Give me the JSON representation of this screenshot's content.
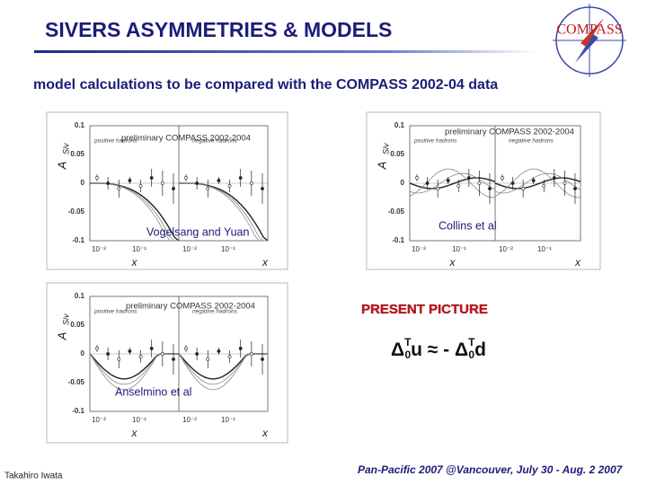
{
  "header": {
    "title": "SIVERS ASYMMETRIES & MODELS",
    "logo": "COMPASS"
  },
  "subtitle": "model calculations  to be compared  with the COMPASS 2002-04 data",
  "panels": [
    {
      "preliminary": "preliminary COMPASS 2002-2004",
      "legend": [
        "positive hadrons",
        "negative hadrons"
      ],
      "model": "Vogelsang and Yuan",
      "y_label": "A",
      "y_label_sub": "Siv",
      "yticks": [
        "0.1",
        "0.05",
        "0",
        "-0.05",
        "-0.1"
      ],
      "xticks": [
        "10⁻²",
        "10⁻¹",
        "10⁻²",
        "10⁻¹"
      ],
      "x_labels": [
        "x",
        "x"
      ]
    },
    {
      "preliminary": "preliminary COMPASS 2002-2004",
      "legend": [
        "positive hadrons",
        "negative hadrons"
      ],
      "model": "Collins et al",
      "y_label": "A",
      "y_label_sub": "Siv",
      "yticks": [
        "0.1",
        "0.05",
        "0",
        "-0.05",
        "-0.1"
      ],
      "xticks": [
        "10⁻²",
        "10⁻¹",
        "10⁻²",
        "10⁻¹"
      ],
      "x_labels": [
        "x",
        "x"
      ]
    },
    {
      "preliminary": "preliminary COMPASS 2002-2004",
      "legend": [
        "positive hadrons",
        "negative hadrons"
      ],
      "model": "Anselmino et al",
      "y_label": "A",
      "y_label_sub": "Siv",
      "yticks": [
        "0.1",
        "0.05",
        "0",
        "-0.05",
        "-0.1"
      ],
      "xticks": [
        "10⁻²",
        "10⁻¹",
        "10⁻²",
        "10⁻¹"
      ],
      "x_labels": [
        "x",
        "x"
      ]
    }
  ],
  "present": {
    "heading": "PRESENT PICTURE",
    "formula": [
      "Δ",
      "T",
      "0",
      "u ≈ - ",
      "Δ",
      "T",
      "0",
      "d"
    ]
  },
  "footer": {
    "author": "Takahiro Iwata",
    "conference": "Pan-Pacific  2007 @Vancouver,  July 30 - Aug. 2 2007"
  }
}
